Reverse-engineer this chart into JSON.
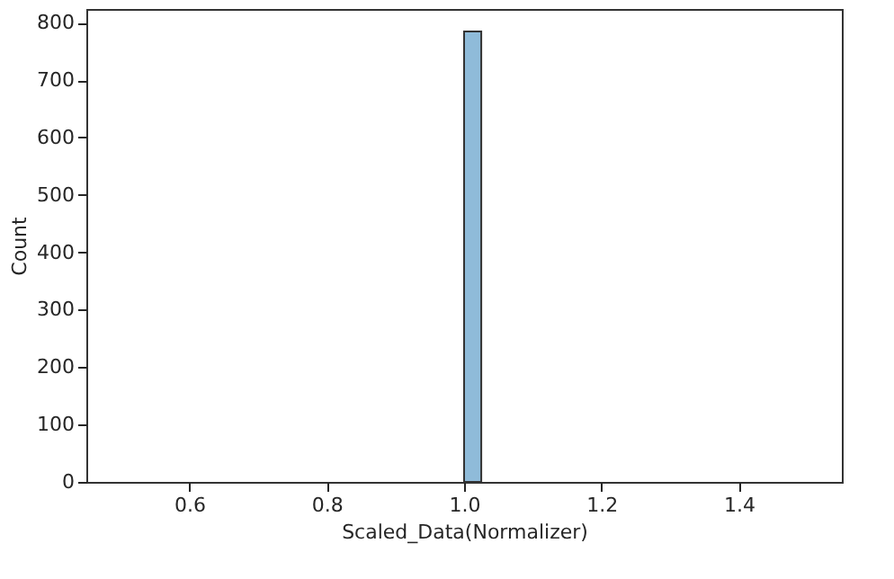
{
  "chart_data": {
    "type": "histogram",
    "xlabel": "Scaled_Data(Normalizer)",
    "ylabel": "Count",
    "bins": [
      1.0,
      1.025
    ],
    "values": [
      785
    ],
    "color": "#8fbbd9",
    "xlim": [
      0.45,
      1.55
    ],
    "xticks": [
      {
        "value": 0.6,
        "label": "0.6"
      },
      {
        "value": 0.8,
        "label": "0.8"
      },
      {
        "value": 1.0,
        "label": "1.0"
      },
      {
        "value": 1.2,
        "label": "1.2"
      },
      {
        "value": 1.4,
        "label": "1.4"
      }
    ],
    "ylim": [
      0,
      824
    ],
    "yticks": [
      0,
      100,
      200,
      300,
      400,
      500,
      600,
      700,
      800
    ],
    "grid": false
  }
}
